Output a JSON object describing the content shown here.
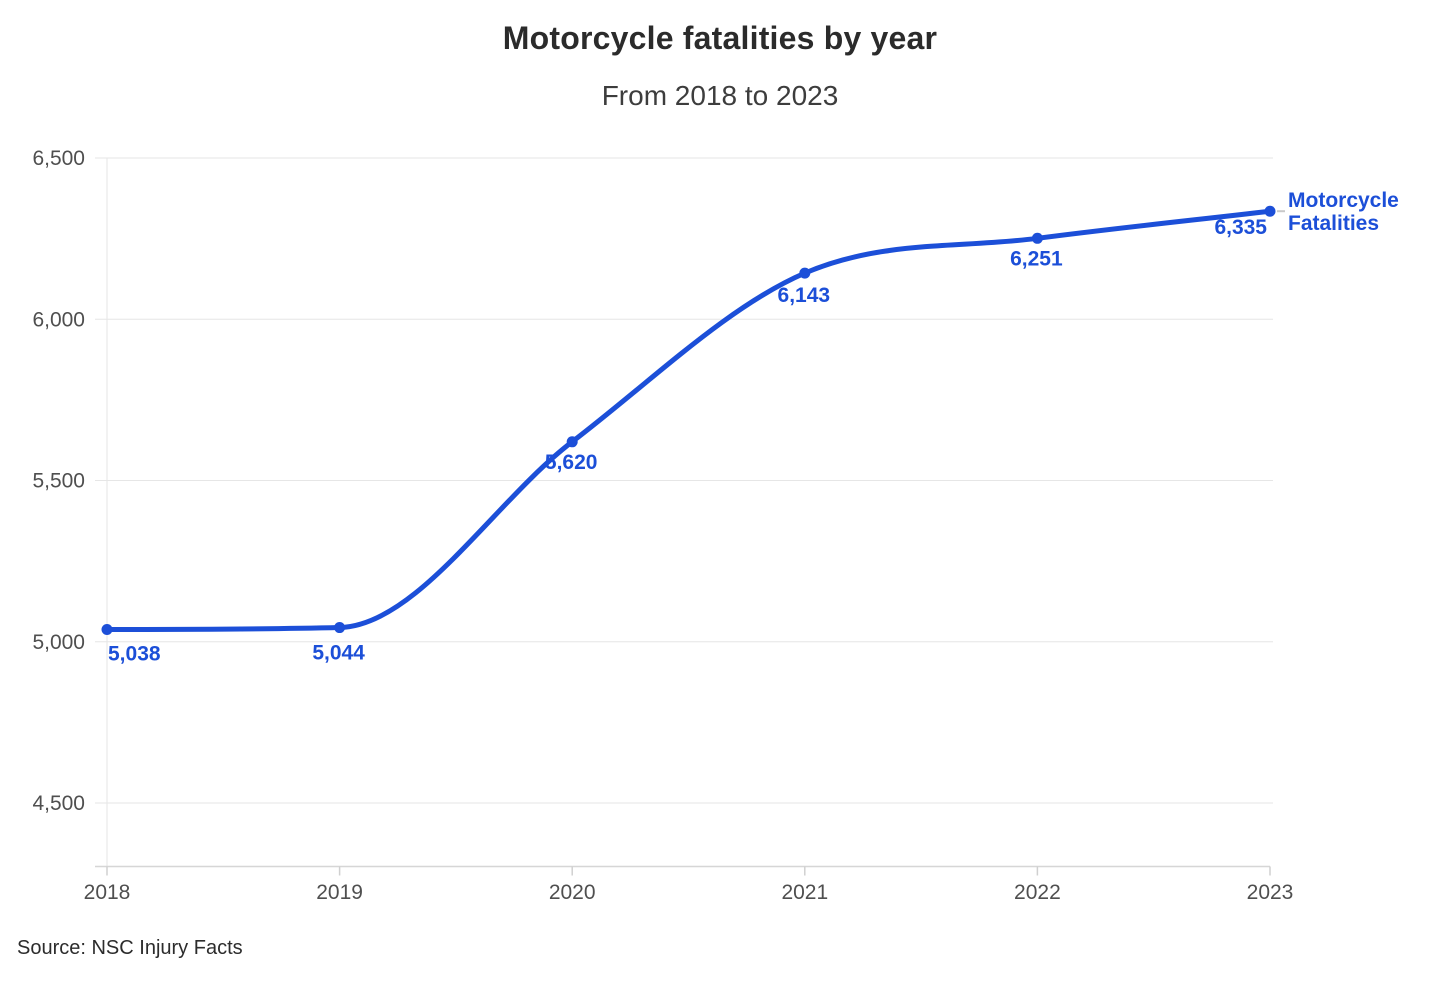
{
  "header": {
    "title": "Motorcycle fatalities by year",
    "subtitle": "From 2018 to 2023"
  },
  "source": {
    "label": "Source: NSC Injury Facts"
  },
  "chart_data": {
    "type": "line",
    "title": "Motorcycle fatalities by year",
    "subtitle": "From 2018 to 2023",
    "x": [
      2018,
      2019,
      2020,
      2021,
      2022,
      2023
    ],
    "categories": [
      "2018",
      "2019",
      "2020",
      "2021",
      "2022",
      "2023"
    ],
    "series": [
      {
        "name": "Motorcycle Fatalities",
        "values": [
          5038,
          5044,
          5620,
          6143,
          6251,
          6335
        ]
      }
    ],
    "point_labels": [
      "5,038",
      "5,044",
      "5,620",
      "6,143",
      "6,251",
      "6,335"
    ],
    "ylim": [
      4500,
      6500
    ],
    "y_ticks": [
      4500,
      5000,
      5500,
      6000,
      6500
    ],
    "y_tick_labels": [
      "4,500",
      "5,000",
      "5,500",
      "6,000",
      "6,500"
    ],
    "grid": "horizontal",
    "legend_position": "end-of-line",
    "colors": {
      "line": "#1c4fd8",
      "point": "#1c4fd8",
      "data_label": "#1c4fd8",
      "legend_text": "#1c4fd8",
      "grid_line": "#e6e6e6",
      "axis_line": "#d6d6d6",
      "tick": "#d0d0d0",
      "axis_text": "#4f4f4f",
      "connector": "#c9c9c9"
    },
    "xlabel": "",
    "ylabel": ""
  }
}
